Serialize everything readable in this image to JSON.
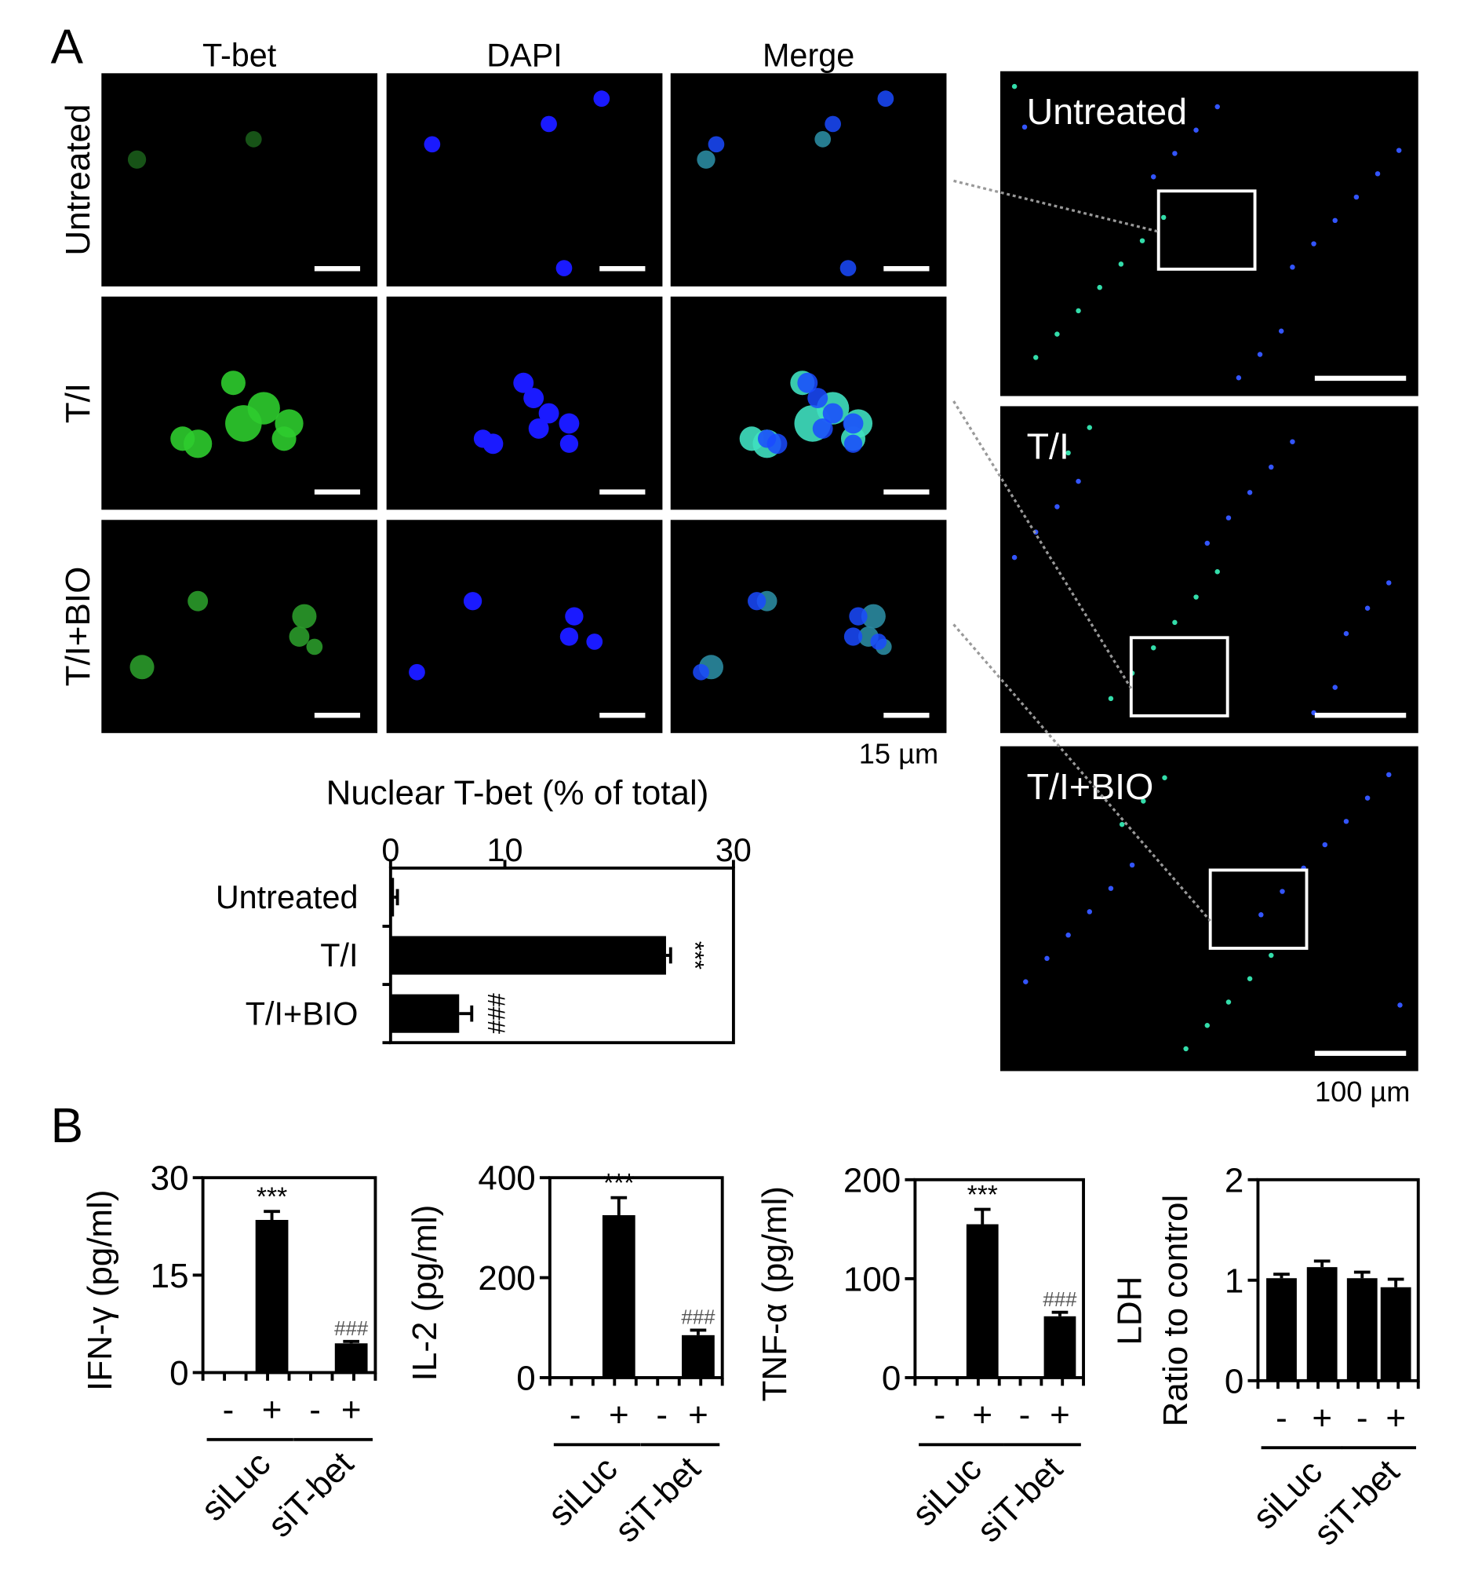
{
  "panel_a": {
    "label": "A",
    "columns": [
      "T-bet",
      "DAPI",
      "Merge"
    ],
    "rows": [
      "Untreated",
      "T/I",
      "T/I+BIO"
    ],
    "scale_small": "15 µm",
    "overview_labels": [
      "Untreated",
      "T/I",
      "T/I+BIO"
    ],
    "scale_large": "100 µm"
  },
  "panel_b_label": "B",
  "chart_data": [
    {
      "type": "hbar",
      "title": "Nuclear T-bet (% of total)",
      "categories": [
        "Untreated",
        "T/I",
        "T/I+BIO"
      ],
      "values": [
        0.3,
        24.1,
        6.0
      ],
      "errors": [
        0.3,
        0.4,
        1.1
      ],
      "annotations": [
        null,
        "***",
        "###"
      ],
      "color": "#000000",
      "xlim": [
        0,
        30
      ],
      "xticks": [
        0,
        10,
        30
      ]
    },
    {
      "type": "bar",
      "ylabel": "IFN-γ (pg/ml)",
      "categories": [
        "-",
        "+",
        "-",
        "+"
      ],
      "groups": [
        "siLuc",
        "siT-bet"
      ],
      "values": [
        0,
        23.5,
        0,
        4.5
      ],
      "errors": [
        0,
        1.3,
        0,
        0.3
      ],
      "annotations": [
        null,
        "***",
        null,
        "###"
      ],
      "color": "#000000",
      "ylim": [
        0,
        30
      ],
      "yticks": [
        0,
        15,
        30
      ]
    },
    {
      "type": "bar",
      "ylabel": "IL-2 (pg/ml)",
      "categories": [
        "-",
        "+",
        "-",
        "+"
      ],
      "groups": [
        "siLuc",
        "siT-bet"
      ],
      "values": [
        0,
        325,
        0,
        85
      ],
      "errors": [
        0,
        35,
        0,
        10
      ],
      "annotations": [
        null,
        "***",
        null,
        "###"
      ],
      "color": "#000000",
      "ylim": [
        0,
        400
      ],
      "yticks": [
        0,
        200,
        400
      ]
    },
    {
      "type": "bar",
      "ylabel": "TNF-α (pg/ml)",
      "categories": [
        "-",
        "+",
        "-",
        "+"
      ],
      "groups": [
        "siLuc",
        "siT-bet"
      ],
      "values": [
        0,
        155,
        0,
        62
      ],
      "errors": [
        0,
        15,
        0,
        4
      ],
      "annotations": [
        null,
        "***",
        null,
        "###"
      ],
      "color": "#000000",
      "ylim": [
        0,
        200
      ],
      "yticks": [
        0,
        100,
        200
      ]
    },
    {
      "type": "bar",
      "ylabel": "LDH",
      "ylabel2": "Ratio to control",
      "categories": [
        "-",
        "+",
        "-",
        "+"
      ],
      "groups": [
        "siLuc",
        "siT-bet"
      ],
      "values": [
        1.02,
        1.13,
        1.02,
        0.93
      ],
      "errors": [
        0.04,
        0.06,
        0.06,
        0.08
      ],
      "color": "#000000",
      "ylim": [
        0,
        2
      ],
      "yticks": [
        0,
        1,
        2
      ]
    }
  ]
}
